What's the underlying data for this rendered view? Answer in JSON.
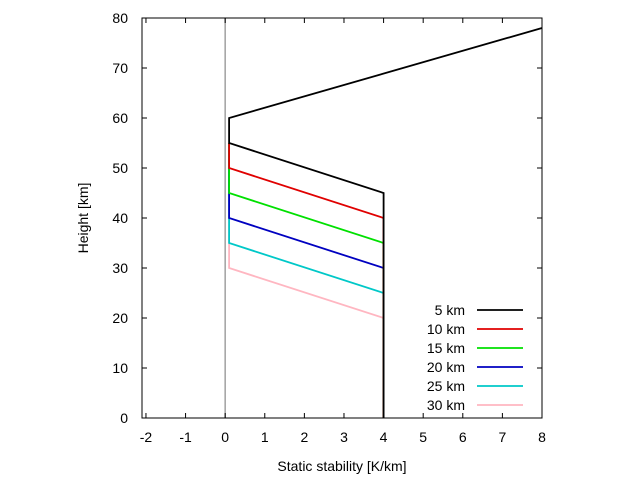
{
  "chart_data": {
    "type": "line",
    "title": "",
    "xlabel": "Static stability [K/km]",
    "ylabel": "Height [km]",
    "xlim": [
      -2.1,
      8
    ],
    "ylim": [
      0,
      80
    ],
    "x_ticks": [
      -2,
      -1,
      0,
      1,
      2,
      3,
      4,
      5,
      6,
      7,
      8
    ],
    "y_ticks": [
      0,
      10,
      20,
      30,
      40,
      50,
      60,
      70,
      80
    ],
    "x_tick_labels": [
      "-2",
      "-1",
      "0",
      "1",
      "2",
      "3",
      "4",
      "5",
      "6",
      "7",
      "8"
    ],
    "y_tick_labels": [
      "0",
      "10",
      "20",
      "30",
      "40",
      "50",
      "60",
      "70",
      "80"
    ],
    "reference_line": {
      "x": 0,
      "color": "#a0a0a0"
    },
    "legend_position": "bottom-right",
    "series": [
      {
        "name": "30 km",
        "color": "#ffb6c1",
        "points": [
          [
            4,
            0
          ],
          [
            4,
            20
          ],
          [
            0.1,
            30
          ],
          [
            0.1,
            55
          ]
        ]
      },
      {
        "name": "25 km",
        "color": "#00c8c8",
        "points": [
          [
            4,
            0
          ],
          [
            4,
            25
          ],
          [
            0.1,
            35
          ],
          [
            0.1,
            55
          ]
        ]
      },
      {
        "name": "20 km",
        "color": "#0000c0",
        "points": [
          [
            4,
            0
          ],
          [
            4,
            30
          ],
          [
            0.1,
            40
          ],
          [
            0.1,
            55
          ]
        ]
      },
      {
        "name": "15 km",
        "color": "#00e000",
        "points": [
          [
            4,
            0
          ],
          [
            4,
            35
          ],
          [
            0.1,
            45
          ],
          [
            0.1,
            55
          ]
        ]
      },
      {
        "name": "10 km",
        "color": "#e00000",
        "points": [
          [
            4,
            0
          ],
          [
            4,
            40
          ],
          [
            0.1,
            50
          ],
          [
            0.1,
            55
          ]
        ]
      },
      {
        "name": "5 km",
        "color": "#000000",
        "points": [
          [
            4,
            0
          ],
          [
            4,
            45
          ],
          [
            0.1,
            55
          ],
          [
            0.1,
            60
          ],
          [
            8,
            78
          ]
        ]
      }
    ],
    "legend_order": [
      "5 km",
      "10 km",
      "15 km",
      "20 km",
      "25 km",
      "30 km"
    ]
  }
}
